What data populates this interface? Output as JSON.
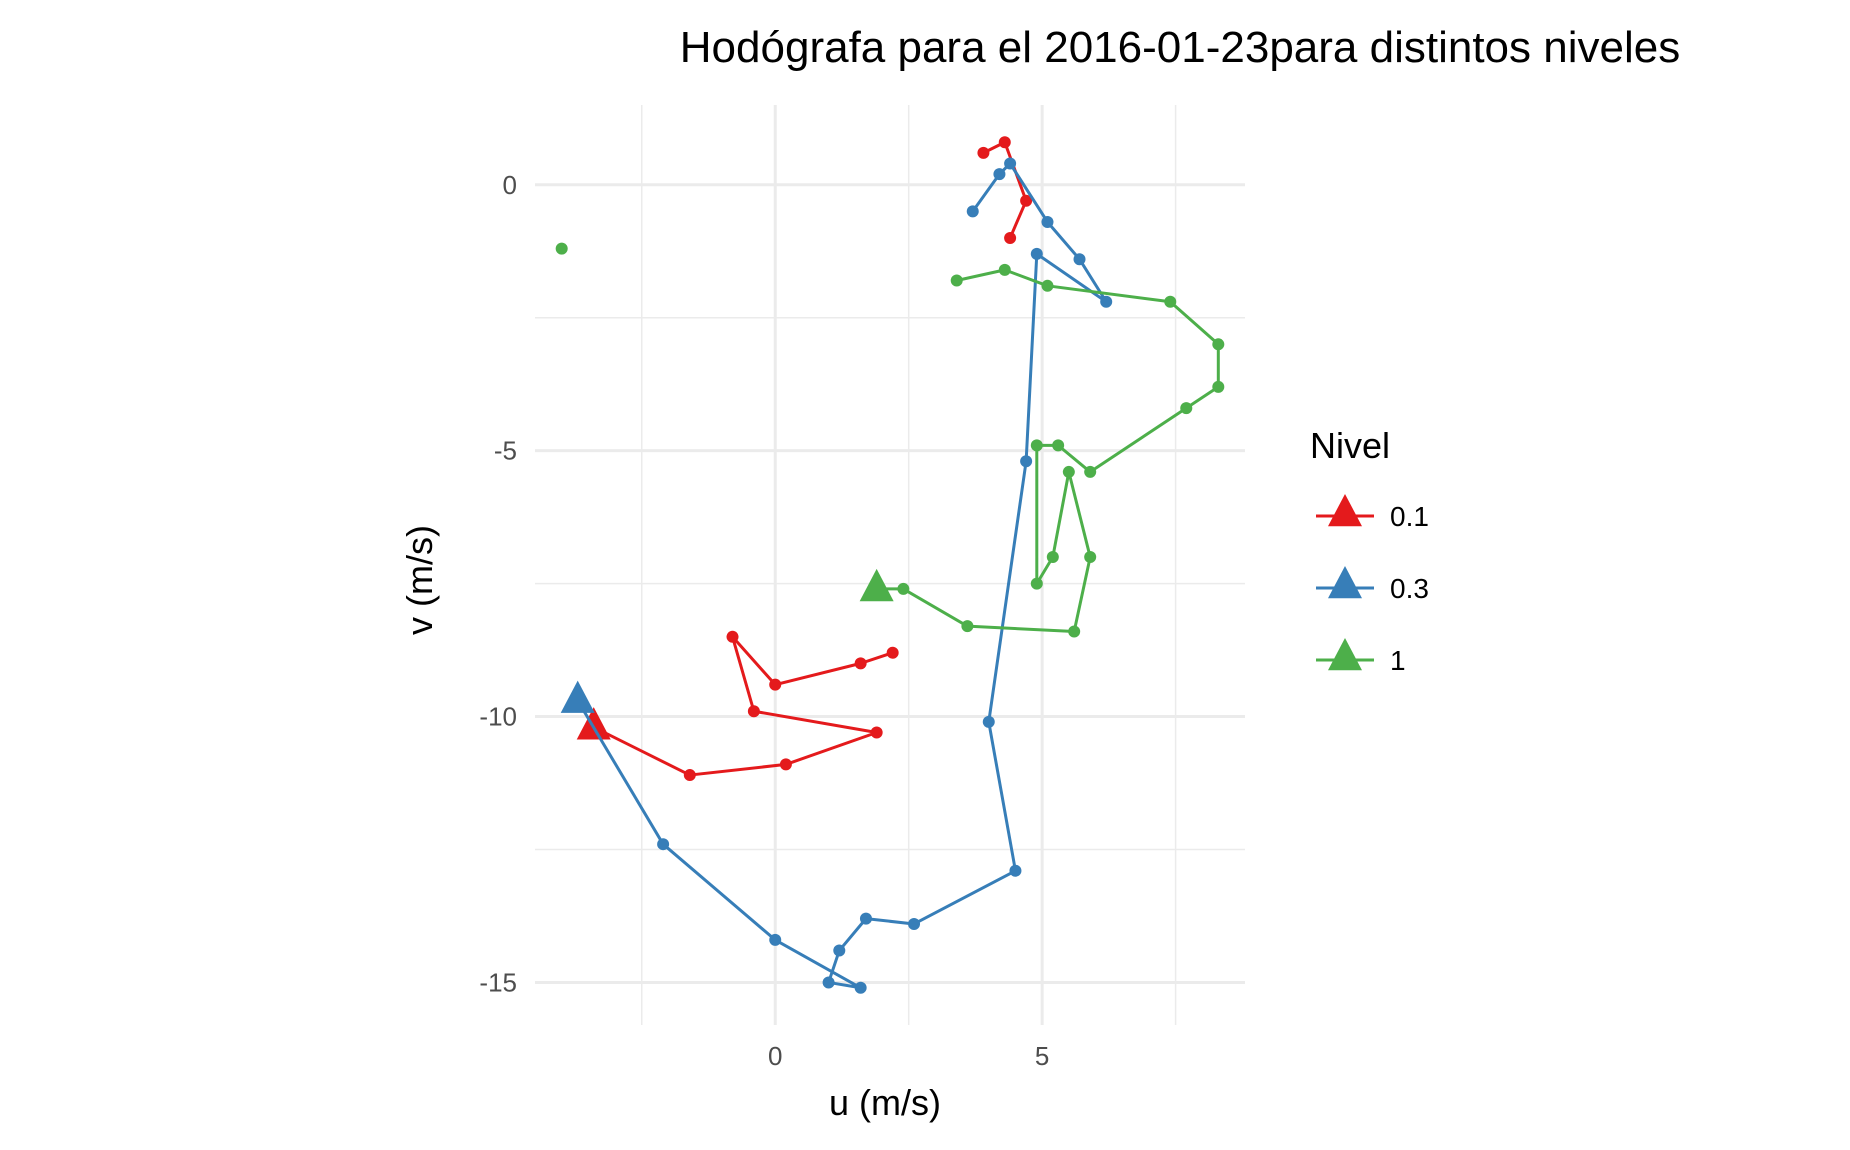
{
  "chart_data": {
    "type": "line",
    "title": "Hodógrafa para el 2016-01-23para distintos niveles",
    "xlabel": "u (m/s)",
    "ylabel": "v (m/s)",
    "xlim": [
      -4.5,
      8.8
    ],
    "ylim": [
      -15.8,
      1.5
    ],
    "x_ticks": [
      0,
      5
    ],
    "y_ticks": [
      0,
      -5,
      -10,
      -15
    ],
    "x_tick_labels": [
      "0",
      "5"
    ],
    "y_tick_labels": [
      "0",
      "-5",
      "-10",
      "-15"
    ],
    "grid": true,
    "legend": {
      "title": "Nivel",
      "position": "right"
    },
    "series": [
      {
        "name": "0.1",
        "color": "#e41a1c",
        "points": [
          {
            "x": -3.4,
            "y": -10.2
          },
          {
            "x": -1.6,
            "y": -11.1
          },
          {
            "x": 0.2,
            "y": -10.9
          },
          {
            "x": 1.9,
            "y": -10.3
          },
          {
            "x": -0.4,
            "y": -9.9
          },
          {
            "x": -0.8,
            "y": -8.5
          },
          {
            "x": 0.0,
            "y": -9.4
          },
          {
            "x": 1.6,
            "y": -9.0
          },
          {
            "x": 2.2,
            "y": -8.8
          }
        ],
        "separate_points": [
          {
            "x": 3.9,
            "y": 0.6
          },
          {
            "x": 4.3,
            "y": 0.8
          },
          {
            "x": 4.7,
            "y": -0.3
          },
          {
            "x": 4.4,
            "y": -1.0
          }
        ]
      },
      {
        "name": "0.3",
        "color": "#377eb8",
        "points": [
          {
            "x": -3.7,
            "y": -9.7
          },
          {
            "x": -2.1,
            "y": -12.4
          },
          {
            "x": 0.0,
            "y": -14.2
          },
          {
            "x": 1.6,
            "y": -15.1
          },
          {
            "x": 1.0,
            "y": -15.0
          },
          {
            "x": 1.2,
            "y": -14.4
          },
          {
            "x": 1.7,
            "y": -13.8
          },
          {
            "x": 2.6,
            "y": -13.9
          },
          {
            "x": 4.5,
            "y": -12.9
          },
          {
            "x": 4.0,
            "y": -10.1
          },
          {
            "x": 4.7,
            "y": -5.2
          },
          {
            "x": 4.9,
            "y": -1.3
          },
          {
            "x": 6.2,
            "y": -2.2
          },
          {
            "x": 5.7,
            "y": -1.4
          },
          {
            "x": 5.1,
            "y": -0.7
          },
          {
            "x": 4.4,
            "y": 0.4
          },
          {
            "x": 4.2,
            "y": 0.2
          },
          {
            "x": 3.7,
            "y": -0.5
          }
        ]
      },
      {
        "name": "1",
        "color": "#4daf4a",
        "points": [
          {
            "x": 1.9,
            "y": -7.6
          },
          {
            "x": 2.4,
            "y": -7.6
          },
          {
            "x": 3.6,
            "y": -8.3
          },
          {
            "x": 5.6,
            "y": -8.4
          },
          {
            "x": 5.9,
            "y": -7.0
          },
          {
            "x": 5.5,
            "y": -5.4
          },
          {
            "x": 5.2,
            "y": -7.0
          },
          {
            "x": 4.9,
            "y": -7.5
          },
          {
            "x": 4.9,
            "y": -4.9
          },
          {
            "x": 5.3,
            "y": -4.9
          },
          {
            "x": 5.9,
            "y": -5.4
          },
          {
            "x": 7.7,
            "y": -4.2
          },
          {
            "x": 8.3,
            "y": -3.8
          },
          {
            "x": 8.3,
            "y": -3.0
          },
          {
            "x": 7.4,
            "y": -2.2
          },
          {
            "x": 5.1,
            "y": -1.9
          },
          {
            "x": 4.3,
            "y": -1.6
          },
          {
            "x": 3.4,
            "y": -1.8
          }
        ],
        "separate_points": [
          {
            "x": -4.0,
            "y": -1.2
          }
        ]
      }
    ]
  }
}
